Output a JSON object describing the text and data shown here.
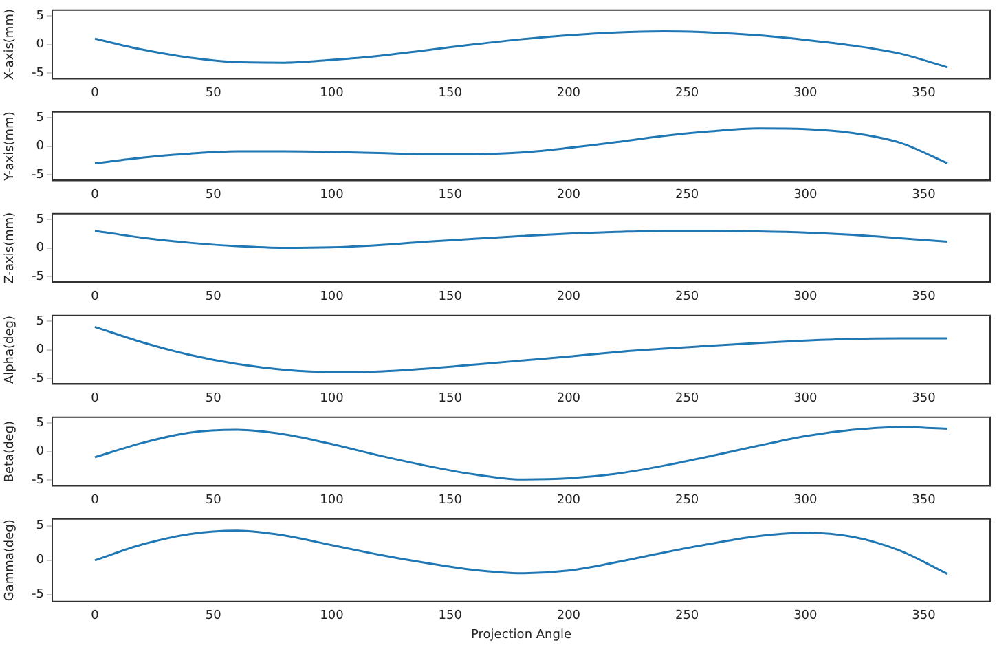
{
  "chart_data": [
    {
      "type": "line",
      "ylabel": "X-axis(mm)",
      "x": [
        0,
        20,
        40,
        60,
        80,
        100,
        120,
        140,
        160,
        180,
        200,
        220,
        240,
        260,
        280,
        300,
        320,
        340,
        360
      ],
      "values": [
        1.0,
        -0.9,
        -2.3,
        -3.1,
        -3.2,
        -2.7,
        -2.0,
        -1.0,
        0.0,
        0.9,
        1.6,
        2.1,
        2.3,
        2.1,
        1.6,
        0.8,
        -0.2,
        -1.6,
        -4.0
      ],
      "color": "#1f77b4",
      "xlim": [
        -18,
        378
      ],
      "xticks": [
        0,
        50,
        100,
        150,
        200,
        250,
        300,
        350
      ],
      "ylim": [
        -6,
        6
      ],
      "yticks": [
        -5,
        0,
        5
      ],
      "grid": false
    },
    {
      "type": "line",
      "ylabel": "Y-axis(mm)",
      "x": [
        0,
        20,
        40,
        60,
        80,
        100,
        120,
        140,
        160,
        180,
        200,
        220,
        240,
        260,
        280,
        300,
        320,
        340,
        360
      ],
      "values": [
        -3.0,
        -2.0,
        -1.3,
        -0.9,
        -0.9,
        -1.0,
        -1.2,
        -1.4,
        -1.4,
        -1.1,
        -0.3,
        0.7,
        1.8,
        2.6,
        3.1,
        3.0,
        2.3,
        0.6,
        -3.0
      ],
      "color": "#1f77b4",
      "xlim": [
        -18,
        378
      ],
      "xticks": [
        0,
        50,
        100,
        150,
        200,
        250,
        300,
        350
      ],
      "ylim": [
        -6,
        6
      ],
      "yticks": [
        -5,
        0,
        5
      ],
      "grid": false
    },
    {
      "type": "line",
      "ylabel": "Z-axis(mm)",
      "x": [
        0,
        20,
        40,
        60,
        80,
        100,
        120,
        140,
        160,
        180,
        200,
        220,
        240,
        260,
        280,
        300,
        320,
        340,
        360
      ],
      "values": [
        3.0,
        1.8,
        0.9,
        0.3,
        0.0,
        0.1,
        0.5,
        1.1,
        1.6,
        2.1,
        2.5,
        2.8,
        3.0,
        3.0,
        2.9,
        2.7,
        2.3,
        1.7,
        1.1
      ],
      "color": "#1f77b4",
      "xlim": [
        -18,
        378
      ],
      "xticks": [
        0,
        50,
        100,
        150,
        200,
        250,
        300,
        350
      ],
      "ylim": [
        -6,
        6
      ],
      "yticks": [
        -5,
        0,
        5
      ],
      "grid": false
    },
    {
      "type": "line",
      "ylabel": "Alpha(deg)",
      "x": [
        0,
        20,
        40,
        60,
        80,
        100,
        120,
        140,
        160,
        180,
        200,
        220,
        240,
        260,
        280,
        300,
        320,
        340,
        360
      ],
      "values": [
        4.0,
        1.3,
        -0.9,
        -2.5,
        -3.5,
        -3.9,
        -3.8,
        -3.3,
        -2.6,
        -1.9,
        -1.2,
        -0.4,
        0.2,
        0.7,
        1.2,
        1.6,
        1.9,
        2.0,
        2.0
      ],
      "color": "#1f77b4",
      "xlim": [
        -18,
        378
      ],
      "xticks": [
        0,
        50,
        100,
        150,
        200,
        250,
        300,
        350
      ],
      "ylim": [
        -6,
        6
      ],
      "yticks": [
        -5,
        0,
        5
      ],
      "grid": false
    },
    {
      "type": "line",
      "ylabel": "Beta(deg)",
      "x": [
        0,
        20,
        40,
        60,
        80,
        100,
        120,
        140,
        160,
        180,
        200,
        220,
        240,
        260,
        280,
        300,
        320,
        340,
        360
      ],
      "values": [
        -1.0,
        1.5,
        3.3,
        3.8,
        3.0,
        1.3,
        -0.7,
        -2.5,
        -4.0,
        -4.9,
        -4.7,
        -3.9,
        -2.5,
        -0.8,
        1.0,
        2.7,
        3.8,
        4.3,
        4.0
      ],
      "color": "#1f77b4",
      "xlim": [
        -18,
        378
      ],
      "xticks": [
        0,
        50,
        100,
        150,
        200,
        250,
        300,
        350
      ],
      "ylim": [
        -6,
        6
      ],
      "yticks": [
        -5,
        0,
        5
      ],
      "grid": false
    },
    {
      "type": "line",
      "ylabel": "Gamma(deg)",
      "xlabel": "Projection Angle",
      "x": [
        0,
        20,
        40,
        60,
        80,
        100,
        120,
        140,
        160,
        180,
        200,
        220,
        240,
        260,
        280,
        300,
        320,
        340,
        360
      ],
      "values": [
        0.0,
        2.3,
        3.8,
        4.3,
        3.6,
        2.2,
        0.8,
        -0.4,
        -1.4,
        -1.9,
        -1.5,
        -0.3,
        1.1,
        2.4,
        3.5,
        4.0,
        3.4,
        1.4,
        -2.0
      ],
      "color": "#1f77b4",
      "xlim": [
        -18,
        378
      ],
      "xticks": [
        0,
        50,
        100,
        150,
        200,
        250,
        300,
        350
      ],
      "ylim": [
        -6,
        6
      ],
      "yticks": [
        -5,
        0,
        5
      ],
      "grid": false
    }
  ]
}
